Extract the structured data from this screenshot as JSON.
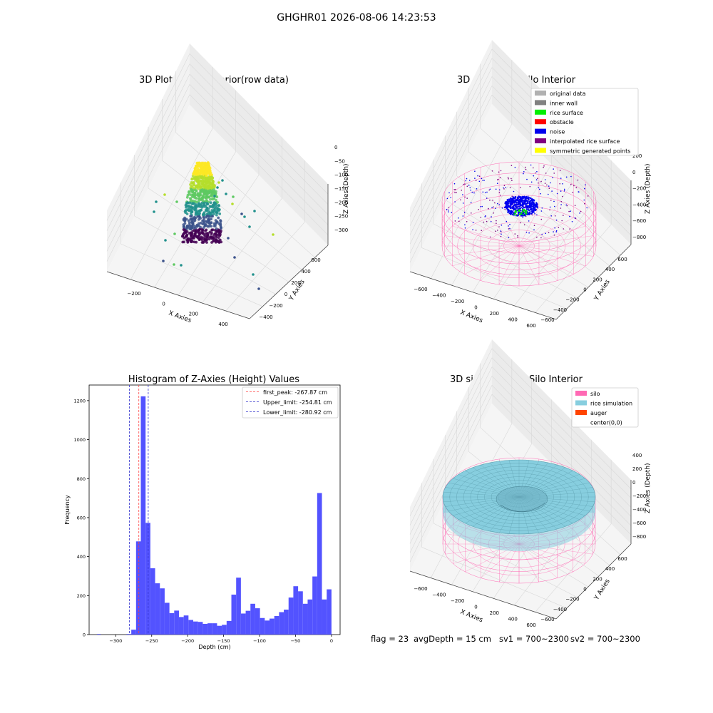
{
  "suptitle": "GHGHR01 2026-08-06 14:23:53",
  "status": {
    "flag": "flag = 23",
    "avg_depth": "avgDepth = 15 cm",
    "sv1": "sv1 = 700~2300",
    "sv2": "sv2 = 700~2300"
  },
  "colors": {
    "hist_bar": "#5050ff",
    "first_peak_line": "#ff4444",
    "limit_lines": "#3333cc",
    "silo_mesh": "#ff69b4",
    "rice_simulation": "#87cedf",
    "auger": "#ff4500",
    "noise": "#0000ee",
    "rice_surface": "#00ee00"
  },
  "chart_data": [
    {
      "type": "scatter3d",
      "title": "3D Plot of Silo Interior(row data)",
      "xlabel": "X Axies",
      "ylabel": "Y Axies",
      "zlabel": "Z Axies (Depth)",
      "x_ticks": [
        "−200",
        "0",
        "200",
        "400"
      ],
      "y_ticks": [
        "−400",
        "−200",
        "0",
        "200",
        "400",
        "600"
      ],
      "z_ticks": [
        "0",
        "−50",
        "−100",
        "−150",
        "−200",
        "−250",
        "−300"
      ],
      "colormap": "viridis"
    },
    {
      "type": "scatter3d",
      "title": "3D classify of Silo Interior",
      "xlabel": "X Axies",
      "ylabel": "Y Axies",
      "zlabel": "Z Axies (Depth)",
      "x_ticks": [
        "−600",
        "−400",
        "−200",
        "0",
        "200",
        "400",
        "600"
      ],
      "y_ticks": [
        "−600",
        "−400",
        "−200",
        "0",
        "200",
        "400",
        "600"
      ],
      "z_ticks": [
        "200",
        "0",
        "−200",
        "−400",
        "−600",
        "−800"
      ],
      "legend": [
        {
          "label": "original data",
          "color": "#b0b0b0"
        },
        {
          "label": "inner wall",
          "color": "#808080"
        },
        {
          "label": "rice surface",
          "color": "#00ee00"
        },
        {
          "label": "obstacle",
          "color": "#ff0000"
        },
        {
          "label": "noise",
          "color": "#0000ee"
        },
        {
          "label": "interpolated rice surface",
          "color": "#800080"
        },
        {
          "label": "symmetric generated points",
          "color": "#ffff00"
        }
      ]
    },
    {
      "type": "bar",
      "title": "Histogram of Z-Axies (Height) Values",
      "xlabel": "Depth (cm)",
      "ylabel": "Frequency",
      "xlim": [
        -337,
        12
      ],
      "ylim": [
        0,
        1280
      ],
      "x_ticks": [
        -300,
        -250,
        -200,
        -150,
        -100,
        -50,
        0
      ],
      "y_ticks": [
        0,
        200,
        400,
        600,
        800,
        1000,
        1200
      ],
      "bin_width": 5.1,
      "bins": [
        {
          "x0": -326.0,
          "v": 3
        },
        {
          "x0": -285.0,
          "v": 3
        },
        {
          "x0": -280.9,
          "v": 25
        },
        {
          "x0": -275.8,
          "v": 478
        },
        {
          "x0": -270.7,
          "v": 1222
        },
        {
          "x0": -265.6,
          "v": 573
        },
        {
          "x0": -260.5,
          "v": 340
        },
        {
          "x0": -255.4,
          "v": 263
        },
        {
          "x0": -250.3,
          "v": 237
        },
        {
          "x0": -245.2,
          "v": 163
        },
        {
          "x0": -240.1,
          "v": 110
        },
        {
          "x0": -235.0,
          "v": 123
        },
        {
          "x0": -229.9,
          "v": 90
        },
        {
          "x0": -224.8,
          "v": 98
        },
        {
          "x0": -219.7,
          "v": 75
        },
        {
          "x0": -214.6,
          "v": 67
        },
        {
          "x0": -209.5,
          "v": 65
        },
        {
          "x0": -204.4,
          "v": 55
        },
        {
          "x0": -199.3,
          "v": 58
        },
        {
          "x0": -194.2,
          "v": 58
        },
        {
          "x0": -189.1,
          "v": 45
        },
        {
          "x0": -184.0,
          "v": 50
        },
        {
          "x0": -178.9,
          "v": 70
        },
        {
          "x0": -173.8,
          "v": 205
        },
        {
          "x0": -168.7,
          "v": 292
        },
        {
          "x0": -163.6,
          "v": 108
        },
        {
          "x0": -158.5,
          "v": 122
        },
        {
          "x0": -153.4,
          "v": 158
        },
        {
          "x0": -148.3,
          "v": 135
        },
        {
          "x0": -143.2,
          "v": 85
        },
        {
          "x0": -138.1,
          "v": 72
        },
        {
          "x0": -133.0,
          "v": 82
        },
        {
          "x0": -127.9,
          "v": 95
        },
        {
          "x0": -122.8,
          "v": 115
        },
        {
          "x0": -117.7,
          "v": 128
        },
        {
          "x0": -112.6,
          "v": 190
        },
        {
          "x0": -107.5,
          "v": 248
        },
        {
          "x0": -102.4,
          "v": 222
        },
        {
          "x0": -97.3,
          "v": 158
        },
        {
          "x0": -92.2,
          "v": 180
        },
        {
          "x0": -87.1,
          "v": 298
        },
        {
          "x0": -82.0,
          "v": 726
        },
        {
          "x0": -76.9,
          "v": 180
        },
        {
          "x0": -71.8,
          "v": 232
        }
      ],
      "vlines": [
        {
          "x": -267.87,
          "label": "first_peak: -267.87 cm",
          "style": "first_peak"
        },
        {
          "x": -254.81,
          "label": "Upper_limit: -254.81 cm",
          "style": "limit"
        },
        {
          "x": -280.92,
          "label": "Lower_limit: -280.92 cm",
          "style": "limit"
        }
      ]
    },
    {
      "type": "surface3d",
      "title": "3D simulation of Silo Interior",
      "xlabel": "X Axies",
      "ylabel": "Y Axies",
      "zlabel": "Z Axies (Depth)",
      "x_ticks": [
        "−600",
        "−400",
        "−200",
        "0",
        "200",
        "400",
        "600"
      ],
      "y_ticks": [
        "−600",
        "−400",
        "−200",
        "0",
        "200",
        "400",
        "600"
      ],
      "z_ticks": [
        "400",
        "200",
        "0",
        "−200",
        "−400",
        "−600",
        "−800"
      ],
      "legend": [
        {
          "label": "silo",
          "color": "#ff69b4"
        },
        {
          "label": "rice simulation",
          "color": "#87cedf"
        },
        {
          "label": "auger",
          "color": "#ff4500"
        },
        {
          "label": "center(0,0)",
          "color": ""
        }
      ]
    }
  ]
}
